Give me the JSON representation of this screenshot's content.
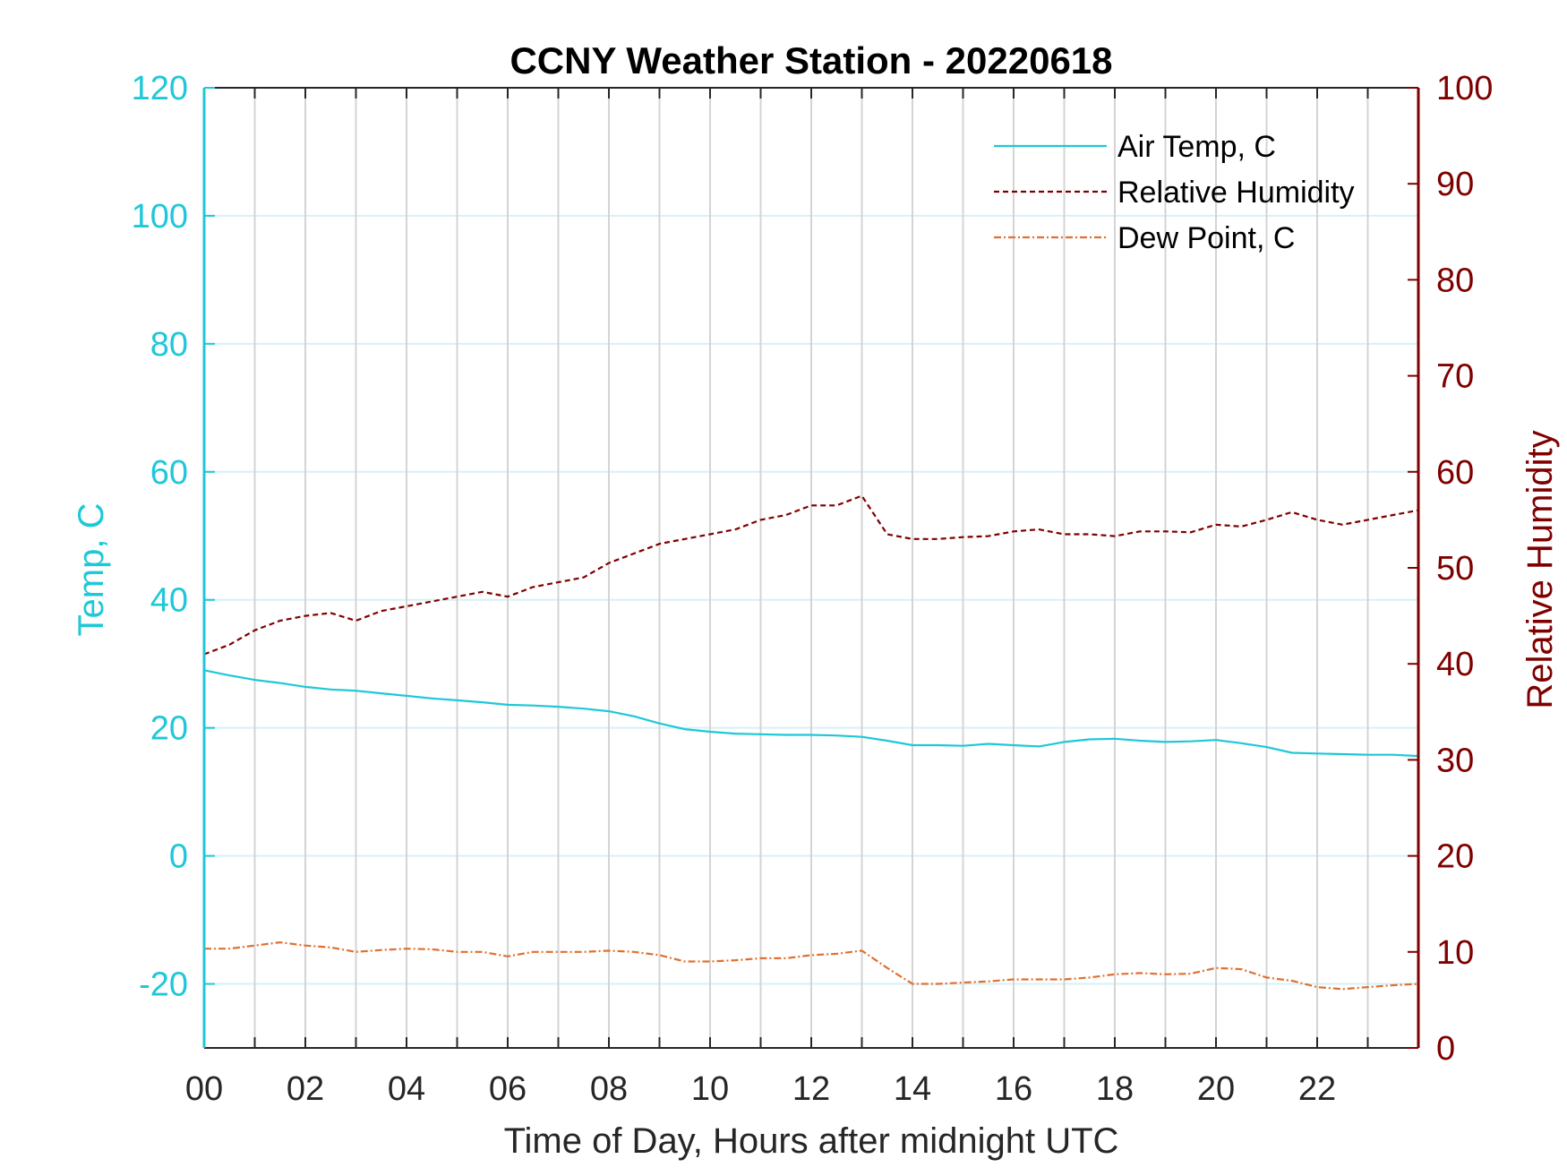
{
  "chart_data": {
    "type": "line",
    "title": "CCNY Weather Station - 20220618",
    "xlabel": "Time of Day, Hours after midnight UTC",
    "ylabel_left": "Temp, C",
    "ylabel_right": "Relative Humidity",
    "xlim": [
      0,
      24
    ],
    "ylim_left": [
      -30,
      120
    ],
    "ylim_right": [
      0,
      100
    ],
    "x_ticks": [
      0,
      2,
      4,
      6,
      8,
      10,
      12,
      14,
      16,
      18,
      20,
      22
    ],
    "x_tick_labels": [
      "00",
      "02",
      "04",
      "06",
      "08",
      "10",
      "12",
      "14",
      "16",
      "18",
      "20",
      "22"
    ],
    "y_left_ticks": [
      -20,
      0,
      20,
      40,
      60,
      80,
      100,
      120
    ],
    "y_left_tick_labels": [
      "-20",
      "0",
      "20",
      "40",
      "60",
      "80",
      "100",
      "120"
    ],
    "y_right_ticks": [
      0,
      10,
      20,
      30,
      40,
      50,
      60,
      70,
      80,
      90,
      100
    ],
    "y_right_tick_labels": [
      "0",
      "10",
      "20",
      "30",
      "40",
      "50",
      "60",
      "70",
      "80",
      "90",
      "100"
    ],
    "grid": true,
    "legend_position": "top-right",
    "colors": {
      "left_axis": "#1ec8d8",
      "right_axis": "#7f0000",
      "hgrid": "#d6f1f6",
      "vgrid": "#d4d4d4"
    },
    "series": [
      {
        "name": "Air Temp, C",
        "axis": "left",
        "color": "#1ec8d8",
        "style": "solid",
        "x": [
          0,
          0.5,
          1,
          1.5,
          2,
          2.5,
          3,
          3.5,
          4,
          4.5,
          5,
          5.5,
          6,
          6.5,
          7,
          7.5,
          8,
          8.5,
          9,
          9.5,
          10,
          10.5,
          11,
          11.5,
          12,
          12.5,
          13,
          13.5,
          14,
          14.5,
          15,
          15.5,
          16,
          16.5,
          17,
          17.5,
          18,
          18.5,
          19,
          19.5,
          20,
          20.5,
          21,
          21.5,
          22,
          22.5,
          23,
          23.5,
          24
        ],
        "values": [
          29,
          28.2,
          27.5,
          27,
          26.4,
          26,
          25.8,
          25.4,
          25,
          24.6,
          24.3,
          24,
          23.6,
          23.5,
          23.3,
          23,
          22.6,
          21.8,
          20.7,
          19.8,
          19.4,
          19.1,
          19,
          18.9,
          18.9,
          18.8,
          18.6,
          18,
          17.3,
          17.3,
          17.2,
          17.5,
          17.3,
          17.1,
          17.8,
          18.2,
          18.3,
          18,
          17.8,
          17.9,
          18.1,
          17.6,
          17,
          16.1,
          16,
          15.9,
          15.8,
          15.8,
          15.6
        ]
      },
      {
        "name": "Relative Humidity",
        "axis": "right",
        "color": "#7f0000",
        "style": "dashed",
        "x": [
          0,
          0.5,
          1,
          1.5,
          2,
          2.5,
          3,
          3.5,
          4,
          4.5,
          5,
          5.5,
          6,
          6.5,
          7,
          7.5,
          8,
          8.5,
          9,
          9.5,
          10,
          10.5,
          11,
          11.5,
          12,
          12.5,
          13,
          13.5,
          14,
          14.5,
          15,
          15.5,
          16,
          16.5,
          17,
          17.5,
          18,
          18.5,
          19,
          19.5,
          20,
          20.5,
          21,
          21.5,
          22,
          22.5,
          23,
          23.5,
          24
        ],
        "values": [
          41,
          42,
          43.5,
          44.5,
          45,
          45.3,
          44.5,
          45.5,
          46,
          46.5,
          47,
          47.5,
          47,
          48,
          48.5,
          49,
          50.5,
          51.5,
          52.5,
          53,
          53.5,
          54,
          55,
          55.5,
          56.5,
          56.5,
          57.5,
          53.5,
          53,
          53,
          53.2,
          53.3,
          53.8,
          54,
          53.5,
          53.5,
          53.3,
          53.8,
          53.8,
          53.7,
          54.5,
          54.3,
          55,
          55.8,
          55,
          54.5,
          55,
          55.5,
          56
        ]
      },
      {
        "name": "Dew Point, C",
        "axis": "left",
        "color": "#e07030",
        "style": "dashdot",
        "x": [
          0,
          0.5,
          1,
          1.5,
          2,
          2.5,
          3,
          3.5,
          4,
          4.5,
          5,
          5.5,
          6,
          6.5,
          7,
          7.5,
          8,
          8.5,
          9,
          9.5,
          10,
          10.5,
          11,
          11.5,
          12,
          12.5,
          13,
          13.5,
          14,
          14.5,
          15,
          15.5,
          16,
          16.5,
          17,
          17.5,
          18,
          18.5,
          19,
          19.5,
          20,
          20.5,
          21,
          21.5,
          22,
          22.5,
          23,
          23.5,
          24
        ],
        "values": [
          -14.5,
          -14.5,
          -14,
          -13.5,
          -14,
          -14.3,
          -15,
          -14.7,
          -14.5,
          -14.6,
          -15,
          -15,
          -15.7,
          -15,
          -15,
          -15,
          -14.8,
          -15,
          -15.5,
          -16.5,
          -16.5,
          -16.3,
          -16,
          -16,
          -15.5,
          -15.3,
          -14.8,
          -17.5,
          -20,
          -20,
          -19.8,
          -19.6,
          -19.3,
          -19.3,
          -19.3,
          -19,
          -18.5,
          -18.3,
          -18.5,
          -18.4,
          -17.5,
          -17.7,
          -19,
          -19.5,
          -20.5,
          -20.8,
          -20.5,
          -20.2,
          -20
        ]
      }
    ]
  }
}
